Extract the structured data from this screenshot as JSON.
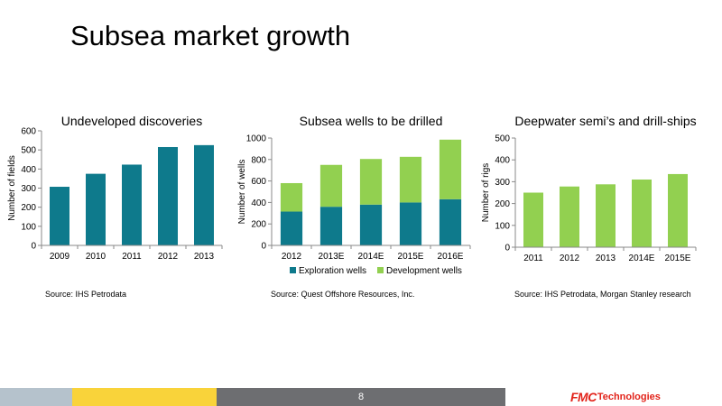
{
  "slide": {
    "title": "Subsea market growth",
    "page_number": "8"
  },
  "colors": {
    "teal": "#0e7a8c",
    "green": "#92d050",
    "footer_light": "#b5c2cc",
    "footer_yellow": "#f9d33a",
    "footer_dark": "#6d6e71",
    "logo_red": "#e2231a"
  },
  "logo": {
    "fmc": "FMC",
    "technologies": "Technologies"
  },
  "chart_data": [
    {
      "type": "bar",
      "title": "Undeveloped discoveries",
      "ylabel": "Number of fields",
      "xlabel": "",
      "categories": [
        "2009",
        "2010",
        "2011",
        "2012",
        "2013"
      ],
      "yticks": [
        "0",
        "100",
        "200",
        "300",
        "400",
        "500",
        "600"
      ],
      "ylim": [
        0,
        600
      ],
      "series": [
        {
          "values": [
            307,
            375,
            423,
            515,
            525
          ],
          "color": "#0e7a8c"
        }
      ],
      "source": "Source:  IHS Petrodata"
    },
    {
      "type": "bar",
      "stacked": true,
      "title": "Subsea wells to be drilled",
      "ylabel": "Number of wells",
      "xlabel": "",
      "categories": [
        "2012",
        "2013E",
        "2014E",
        "2015E",
        "2016E"
      ],
      "yticks": [
        "0",
        "200",
        "400",
        "600",
        "800",
        "1000"
      ],
      "ylim": [
        0,
        1000
      ],
      "series": [
        {
          "name": "Exploration wells",
          "values": [
            315,
            360,
            380,
            400,
            430
          ],
          "color": "#0e7a8c"
        },
        {
          "name": "Development wells",
          "values": [
            265,
            390,
            425,
            425,
            555
          ],
          "color": "#92d050"
        }
      ],
      "legend": "bottom",
      "source": "Source:  Quest Offshore Resources, Inc."
    },
    {
      "type": "bar",
      "title": "Deepwater semi’s and drill-ships",
      "ylabel": "Number of rigs",
      "xlabel": "",
      "categories": [
        "2011",
        "2012",
        "2013",
        "2014E",
        "2015E"
      ],
      "yticks": [
        "0",
        "100",
        "200",
        "300",
        "400",
        "500"
      ],
      "ylim": [
        0,
        500
      ],
      "series": [
        {
          "values": [
            250,
            278,
            288,
            310,
            335
          ],
          "color": "#92d050"
        }
      ],
      "source": "Source:  IHS Petrodata, Morgan Stanley research"
    }
  ]
}
